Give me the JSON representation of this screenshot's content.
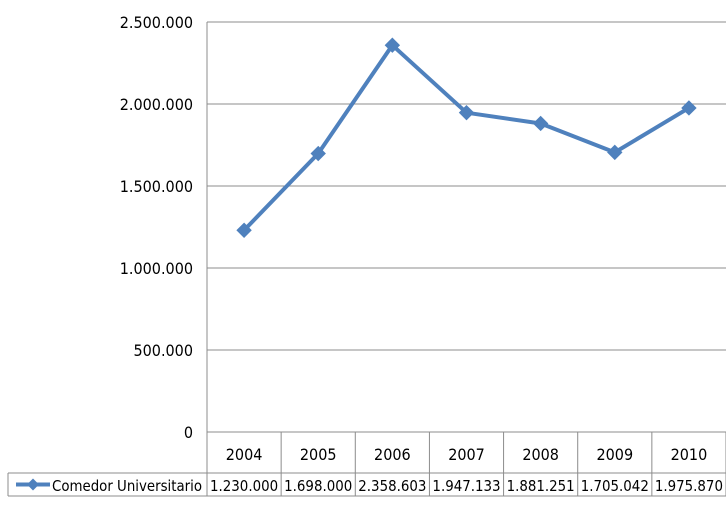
{
  "chart_data": {
    "type": "line",
    "categories": [
      "2004",
      "2005",
      "2006",
      "2007",
      "2008",
      "2009",
      "2010"
    ],
    "series": [
      {
        "name": "Comedor Universitario",
        "values": [
          1230000,
          1698000,
          2358603,
          1947133,
          1881251,
          1705042,
          1975870
        ],
        "value_labels": [
          "1.230.000",
          "1.698.000",
          "2.358.603",
          "1.947.133",
          "1.881.251",
          "1.705.042",
          "1.975.870"
        ],
        "color": "#4f81bd",
        "marker": "diamond"
      }
    ],
    "y_ticks": [
      0,
      500000,
      1000000,
      1500000,
      2000000,
      2500000
    ],
    "y_tick_labels": [
      "0",
      "500.000",
      "1.000.000",
      "1.500.000",
      "2.000.000",
      "2.500.000"
    ],
    "ylim": [
      0,
      2500000
    ],
    "grid": true,
    "legend": "data-table-left",
    "data_table": true,
    "title": "",
    "xlabel": "",
    "ylabel": ""
  },
  "colors": {
    "series": "#4f81bd",
    "gridline": "#8c8c8c",
    "table_border": "#8c8c8c",
    "text": "#000000"
  }
}
